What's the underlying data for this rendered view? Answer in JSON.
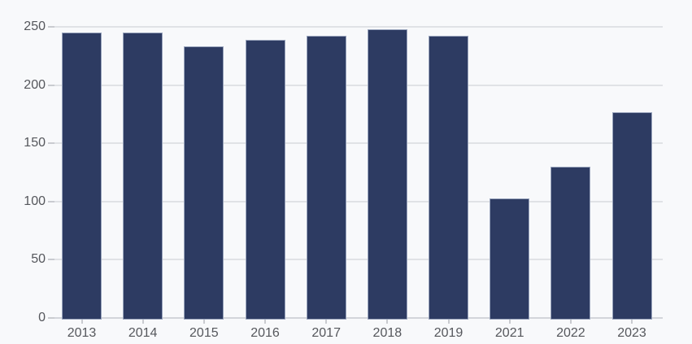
{
  "chart_data": {
    "type": "bar",
    "categories": [
      "2013",
      "2014",
      "2015",
      "2016",
      "2017",
      "2018",
      "2019",
      "2021",
      "2022",
      "2023"
    ],
    "values": [
      245,
      245,
      233,
      239,
      242,
      248,
      242,
      103,
      130,
      177
    ],
    "y_ticks": [
      0,
      50,
      100,
      150,
      200,
      250
    ],
    "ylim": [
      0,
      250
    ],
    "grid": true,
    "legend": false,
    "colors": {
      "background": "#f8f9fb",
      "bar_fill": "#2d3b62",
      "bar_border": "#9aa5bd",
      "gridline": "#e0e2e6",
      "axis_line": "#d3d5da",
      "tick": "#c9cbd0",
      "label_text": "#55575c"
    }
  }
}
